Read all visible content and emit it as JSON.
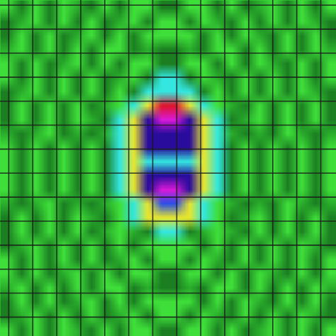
{
  "chart_data": {
    "type": "heatmap",
    "grid": true,
    "tick_labels": false,
    "colors": [
      "#d81ad8",
      "#2a0c9c",
      "#2a50e6",
      "#33e6e0",
      "#1b7f22",
      "#3fdf3a",
      "#e6e62e",
      "#e0142a",
      "#2aae2c"
    ],
    "cells": [
      [
        5,
        4,
        5,
        4,
        5,
        8,
        4,
        5,
        4,
        5,
        5,
        4,
        4,
        5,
        5,
        4,
        5,
        4,
        8,
        5,
        4,
        5,
        4,
        5
      ],
      [
        4,
        8,
        5,
        4,
        5,
        4,
        5,
        4,
        8,
        5,
        4,
        5,
        5,
        4,
        5,
        8,
        4,
        5,
        4,
        5,
        4,
        5,
        8,
        4
      ],
      [
        4,
        5,
        4,
        5,
        4,
        8,
        5,
        4,
        5,
        4,
        5,
        5,
        5,
        5,
        4,
        5,
        4,
        5,
        8,
        4,
        5,
        4,
        5,
        4
      ],
      [
        8,
        5,
        4,
        5,
        4,
        5,
        4,
        5,
        5,
        4,
        8,
        4,
        4,
        8,
        4,
        5,
        5,
        4,
        5,
        4,
        5,
        4,
        5,
        8
      ],
      [
        5,
        4,
        5,
        4,
        8,
        5,
        4,
        5,
        4,
        5,
        5,
        4,
        4,
        5,
        5,
        4,
        5,
        4,
        5,
        8,
        4,
        5,
        4,
        5
      ],
      [
        5,
        4,
        5,
        4,
        5,
        4,
        5,
        4,
        8,
        5,
        4,
        3,
        3,
        4,
        5,
        8,
        4,
        5,
        4,
        5,
        4,
        5,
        4,
        5
      ],
      [
        4,
        8,
        5,
        4,
        5,
        4,
        5,
        4,
        5,
        4,
        3,
        3,
        3,
        3,
        4,
        5,
        4,
        5,
        4,
        5,
        4,
        5,
        8,
        4
      ],
      [
        4,
        5,
        4,
        5,
        4,
        5,
        4,
        8,
        5,
        3,
        6,
        7,
        7,
        6,
        3,
        5,
        8,
        4,
        5,
        4,
        5,
        4,
        5,
        4
      ],
      [
        4,
        5,
        4,
        5,
        4,
        5,
        8,
        4,
        3,
        6,
        1,
        0,
        0,
        1,
        6,
        3,
        4,
        8,
        5,
        4,
        5,
        4,
        5,
        4
      ],
      [
        8,
        4,
        8,
        5,
        4,
        8,
        4,
        8,
        3,
        6,
        1,
        1,
        1,
        1,
        6,
        3,
        8,
        4,
        8,
        4,
        5,
        8,
        4,
        8
      ],
      [
        5,
        4,
        5,
        4,
        5,
        4,
        5,
        4,
        3,
        6,
        1,
        1,
        1,
        1,
        6,
        3,
        4,
        5,
        4,
        5,
        4,
        5,
        4,
        5
      ],
      [
        5,
        4,
        5,
        4,
        5,
        4,
        5,
        4,
        3,
        6,
        3,
        3,
        3,
        3,
        6,
        3,
        4,
        5,
        4,
        5,
        4,
        5,
        4,
        5
      ],
      [
        5,
        4,
        5,
        4,
        5,
        4,
        5,
        4,
        3,
        6,
        1,
        1,
        1,
        1,
        6,
        3,
        4,
        5,
        4,
        5,
        4,
        5,
        4,
        5
      ],
      [
        5,
        4,
        5,
        4,
        5,
        4,
        5,
        4,
        3,
        6,
        1,
        0,
        0,
        1,
        6,
        3,
        4,
        5,
        4,
        5,
        4,
        5,
        4,
        5
      ],
      [
        8,
        4,
        8,
        5,
        4,
        8,
        4,
        8,
        5,
        3,
        6,
        2,
        2,
        6,
        3,
        5,
        8,
        4,
        8,
        4,
        5,
        8,
        4,
        8
      ],
      [
        4,
        5,
        4,
        5,
        4,
        5,
        8,
        4,
        5,
        3,
        6,
        6,
        6,
        6,
        3,
        5,
        4,
        8,
        5,
        4,
        5,
        4,
        5,
        4
      ],
      [
        4,
        5,
        4,
        5,
        4,
        5,
        4,
        8,
        5,
        8,
        4,
        3,
        3,
        4,
        8,
        5,
        8,
        4,
        5,
        4,
        5,
        4,
        5,
        4
      ],
      [
        4,
        8,
        5,
        4,
        5,
        4,
        5,
        4,
        5,
        4,
        5,
        5,
        5,
        5,
        4,
        5,
        4,
        5,
        4,
        5,
        4,
        5,
        8,
        4
      ],
      [
        5,
        4,
        5,
        4,
        5,
        4,
        5,
        4,
        8,
        5,
        4,
        5,
        5,
        4,
        5,
        8,
        4,
        5,
        4,
        5,
        4,
        5,
        4,
        5
      ],
      [
        5,
        4,
        5,
        4,
        8,
        5,
        4,
        5,
        4,
        5,
        5,
        4,
        4,
        5,
        5,
        4,
        5,
        4,
        5,
        8,
        4,
        5,
        4,
        5
      ],
      [
        8,
        5,
        4,
        5,
        4,
        5,
        4,
        5,
        5,
        4,
        8,
        4,
        4,
        8,
        4,
        5,
        5,
        4,
        5,
        4,
        5,
        4,
        5,
        8
      ],
      [
        4,
        5,
        4,
        5,
        4,
        8,
        5,
        4,
        5,
        4,
        5,
        5,
        5,
        5,
        4,
        5,
        4,
        5,
        8,
        4,
        5,
        4,
        5,
        4
      ],
      [
        4,
        8,
        5,
        4,
        5,
        4,
        5,
        4,
        8,
        5,
        4,
        5,
        5,
        4,
        5,
        8,
        4,
        5,
        4,
        5,
        4,
        5,
        8,
        4
      ],
      [
        5,
        4,
        5,
        4,
        5,
        8,
        4,
        5,
        4,
        5,
        5,
        4,
        4,
        5,
        5,
        4,
        5,
        4,
        8,
        5,
        4,
        5,
        4,
        5
      ]
    ]
  }
}
